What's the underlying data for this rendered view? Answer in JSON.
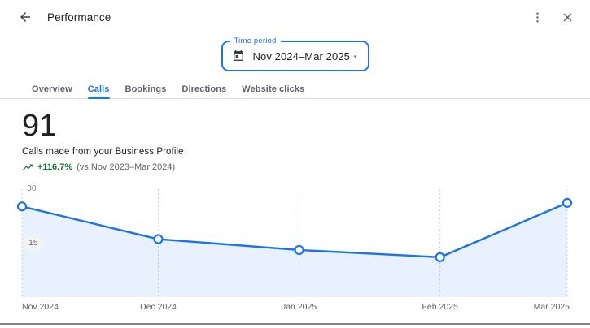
{
  "header": {
    "title": "Performance",
    "back_icon": "arrow-left",
    "menu_icon": "kebab-menu",
    "close_icon": "x"
  },
  "time_period": {
    "label": "Time period",
    "value": "Nov 2024–Mar 2025",
    "icon": "calendar"
  },
  "tabs": {
    "items": [
      {
        "label": "Overview",
        "active": false
      },
      {
        "label": "Calls",
        "active": true
      },
      {
        "label": "Bookings",
        "active": false
      },
      {
        "label": "Directions",
        "active": false
      },
      {
        "label": "Website clicks",
        "active": false
      }
    ]
  },
  "metric": {
    "value": "91",
    "description": "Calls made from your Business Profile",
    "change": "+116.7%",
    "comparison": "(vs Nov 2023–Mar 2024)"
  },
  "colors": {
    "accent": "#1a73e8",
    "positive": "#137333",
    "line": "#1a73e8",
    "area_fill": "rgba(26,115,232,0.10)",
    "grid": "#ccd0d5",
    "muted_text": "#5f6368"
  },
  "chart_data": {
    "type": "area",
    "title": "Calls made from your Business Profile",
    "x": [
      "Nov 2024",
      "Dec 2024",
      "Jan 2025",
      "Feb 2025",
      "Mar 2025"
    ],
    "x_day_offsets": [
      0,
      30,
      61,
      92,
      120
    ],
    "values": [
      25,
      16,
      13,
      11,
      26
    ],
    "total": 91,
    "ylim": [
      0,
      30
    ],
    "yticks": [
      15,
      30
    ],
    "grid": "vertical-dashed",
    "legend": "none",
    "point_style": "open-circle"
  }
}
